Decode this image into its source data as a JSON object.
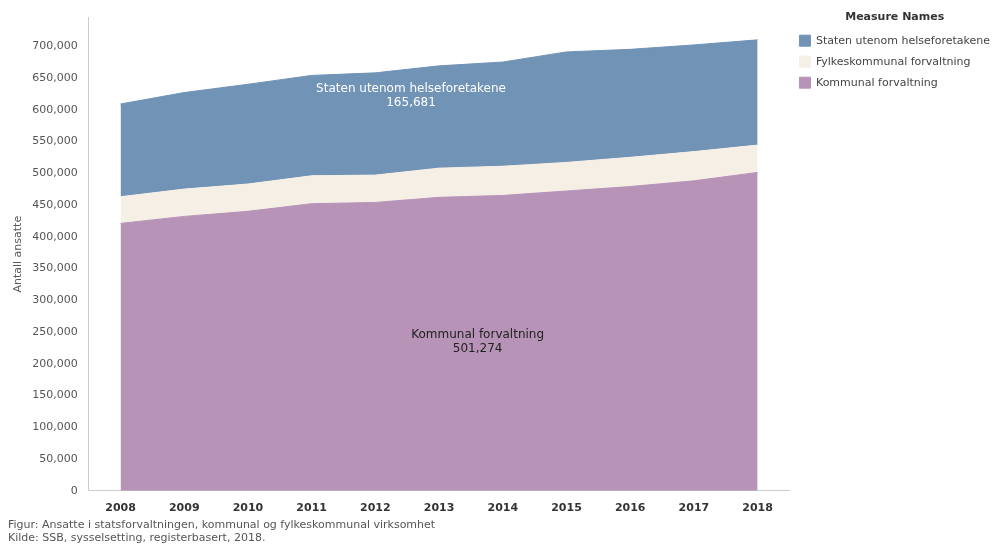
{
  "chart_data": {
    "type": "area",
    "stacked": true,
    "ylabel": "Antall ansatte",
    "legend_title": "Measure Names",
    "legend": "top right",
    "grid": false,
    "marker": "none",
    "categories": [
      "2008",
      "2009",
      "2010",
      "2011",
      "2012",
      "2013",
      "2014",
      "2015",
      "2016",
      "2017",
      "2018"
    ],
    "ylim": [
      0,
      745000
    ],
    "yticks": [
      0,
      {
        "value": 50000,
        "label": "50,000"
      },
      {
        "value": 100000,
        "label": "100,000"
      },
      {
        "value": 150000,
        "label": "150,000"
      },
      {
        "value": 200000,
        "label": "200,000"
      },
      {
        "value": 250000,
        "label": "250,000"
      },
      {
        "value": 300000,
        "label": "300,000"
      },
      {
        "value": 350000,
        "label": "350,000"
      },
      {
        "value": 400000,
        "label": "400,000"
      },
      {
        "value": 450000,
        "label": "450,000"
      },
      {
        "value": 500000,
        "label": "500,000"
      },
      {
        "value": 550000,
        "label": "550,000"
      },
      {
        "value": 600000,
        "label": "600,000"
      },
      {
        "value": 650000,
        "label": "650,000"
      },
      {
        "value": 700000,
        "label": "700,000"
      }
    ],
    "series": [
      {
        "name": "Kommunal forvaltning",
        "color": "#b793b7",
        "values": [
          421000,
          432000,
          440000,
          452000,
          454000,
          462000,
          465000,
          472000,
          479000,
          488000,
          501274
        ]
      },
      {
        "name": "Fylkeskommunal forvaltning",
        "color": "#f5efe6",
        "values": [
          42000,
          43000,
          43000,
          44000,
          43000,
          46000,
          46000,
          45000,
          46000,
          46000,
          43000
        ]
      },
      {
        "name": "Staten utenom helseforetakene",
        "color": "#7093b6",
        "values": [
          146000,
          152000,
          157000,
          158000,
          161000,
          161000,
          164000,
          174000,
          170000,
          168000,
          165681
        ]
      }
    ],
    "annotations": [
      "Staten utenom helseforetakene\n165,681",
      "Kommunal forvaltning\n501,274",
      "Figur: Ansatte i statsforvaltningen, kommunal og fylkeskommunal virksomhet",
      "Kilde: SSB, sysselsetting, registerbasert, 2018."
    ]
  }
}
